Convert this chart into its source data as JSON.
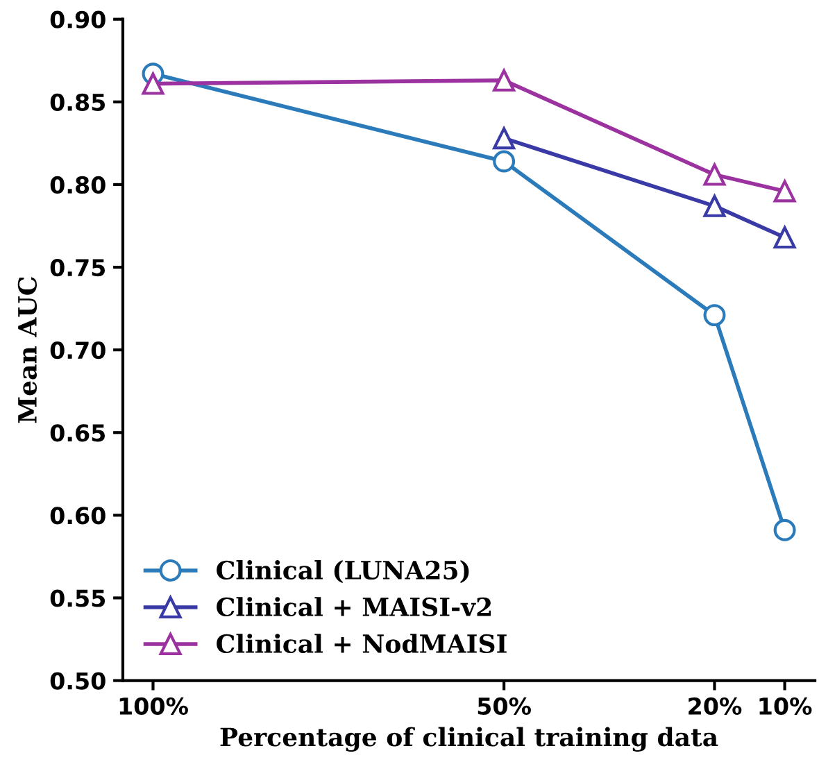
{
  "chart_data": {
    "type": "line",
    "xlabel": "Percentage of clinical training data",
    "ylabel": "Mean AUC",
    "x": [
      100,
      50,
      20,
      10
    ],
    "xlim": [
      104.3,
      5.7
    ],
    "xticks": [
      {
        "value": 100,
        "label": "100%"
      },
      {
        "value": 50,
        "label": "50%"
      },
      {
        "value": 20,
        "label": "20%"
      },
      {
        "value": 10,
        "label": "10%"
      }
    ],
    "ylim": [
      0.5,
      0.9
    ],
    "yticks": [
      {
        "value": 0.5,
        "label": "0.50"
      },
      {
        "value": 0.55,
        "label": "0.55"
      },
      {
        "value": 0.6,
        "label": "0.60"
      },
      {
        "value": 0.65,
        "label": "0.65"
      },
      {
        "value": 0.7,
        "label": "0.70"
      },
      {
        "value": 0.75,
        "label": "0.75"
      },
      {
        "value": 0.8,
        "label": "0.80"
      },
      {
        "value": 0.85,
        "label": "0.85"
      },
      {
        "value": 0.9,
        "label": "0.90"
      }
    ],
    "grid": false,
    "legend": "bottom left",
    "line_style": "solid",
    "series": [
      {
        "name": "Clinical (LUNA25)",
        "color": "#2b7bba",
        "marker": "circle",
        "values": [
          0.867,
          0.814,
          0.721,
          0.591
        ]
      },
      {
        "name": "Clinical + MAISI-v2",
        "color": "#3a3aa6",
        "marker": "triangle",
        "values": [
          null,
          0.828,
          0.787,
          0.768
        ]
      },
      {
        "name": "Clinical + NodMAISI",
        "color": "#9b32a0",
        "marker": "triangle",
        "values": [
          0.861,
          0.863,
          0.806,
          0.796
        ]
      }
    ]
  }
}
